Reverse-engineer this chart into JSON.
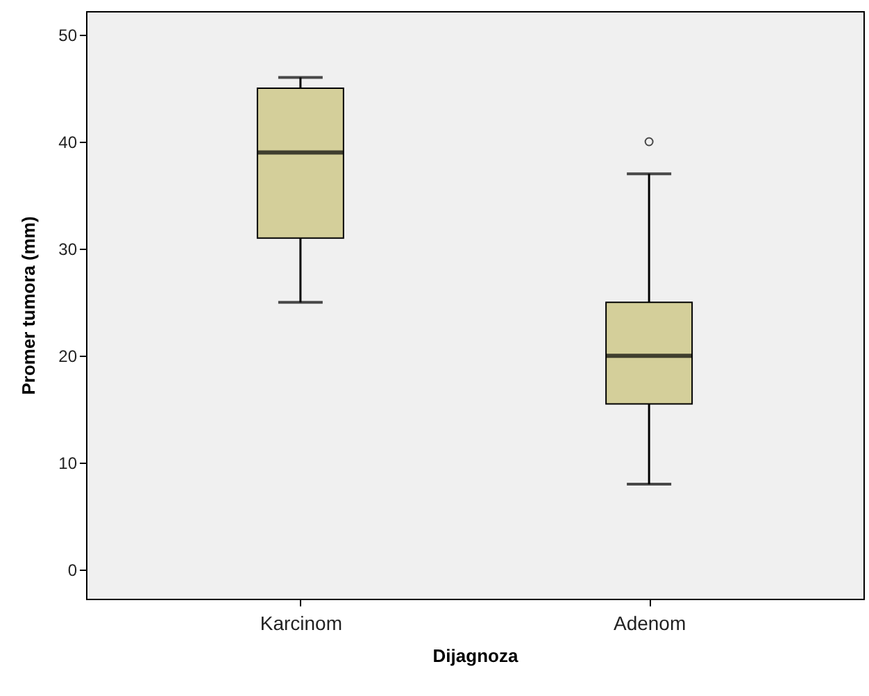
{
  "chart_data": {
    "type": "box",
    "xlabel": "Dijagnoza",
    "ylabel": "Promer tumora (mm)",
    "categories": [
      "Karcinom",
      "Adenom"
    ],
    "boxes": [
      {
        "low": 25,
        "q1": 31,
        "median": 39,
        "q3": 45,
        "high": 46
      },
      {
        "low": 8,
        "q1": 15.5,
        "median": 20,
        "q3": 25,
        "high": 37,
        "outliers": [
          40
        ]
      }
    ],
    "color": "#d4cf9a",
    "ylim": [
      -2.7,
      52.2
    ],
    "yticks": [
      0,
      10,
      20,
      30,
      40,
      50
    ],
    "grid": false,
    "marker": "circle"
  }
}
